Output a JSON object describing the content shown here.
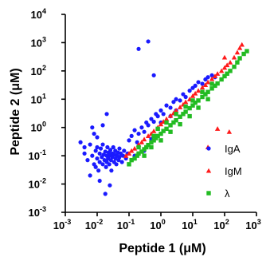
{
  "chart_data": {
    "type": "scatter",
    "xlabel": "Peptide 1 (μM)",
    "ylabel": "Peptide 2 (μM)",
    "log_x": true,
    "log_y": true,
    "xlim": [
      0.001,
      1000
    ],
    "ylim": [
      0.001,
      10000
    ],
    "x_ticks": [
      {
        "base": "10",
        "exp": "-3"
      },
      {
        "base": "10",
        "exp": "-2"
      },
      {
        "base": "10",
        "exp": "-1"
      },
      {
        "base": "10",
        "exp": "0"
      },
      {
        "base": "10",
        "exp": "1"
      },
      {
        "base": "10",
        "exp": "2"
      },
      {
        "base": "10",
        "exp": "3"
      }
    ],
    "y_ticks": [
      {
        "label": "10",
        "exp": "-3"
      },
      {
        "label": "10",
        "exp": "-2"
      },
      {
        "label": "10",
        "exp": "-1"
      },
      {
        "label": "10",
        "exp": "0",
        "full": "10⁰"
      },
      {
        "label": "10",
        "exp": "1"
      },
      {
        "label": "10",
        "exp": "2"
      },
      {
        "label": "10",
        "exp": "3"
      },
      {
        "label": "10",
        "exp": "4"
      }
    ],
    "y_tick_text": [
      "10-3",
      "10-2",
      "10-1",
      "100",
      "101",
      "102",
      "103",
      "104"
    ],
    "legend": {
      "placement": "bottom-right"
    },
    "series": [
      {
        "name": "IgA",
        "color": "#1a1aff",
        "marker": "circle",
        "points": [
          [
            0.003,
            0.3
          ],
          [
            0.004,
            0.2
          ],
          [
            0.004,
            0.12
          ],
          [
            0.005,
            0.07
          ],
          [
            0.006,
            0.25
          ],
          [
            0.007,
            0.1
          ],
          [
            0.008,
            0.05
          ],
          [
            0.009,
            0.15
          ],
          [
            0.009,
            0.04
          ],
          [
            0.01,
            0.2
          ],
          [
            0.01,
            0.08
          ],
          [
            0.011,
            0.03
          ],
          [
            0.012,
            0.12
          ],
          [
            0.012,
            0.06
          ],
          [
            0.013,
            0.18
          ],
          [
            0.014,
            0.09
          ],
          [
            0.015,
            0.05
          ],
          [
            0.015,
            0.25
          ],
          [
            0.016,
            0.11
          ],
          [
            0.017,
            0.07
          ],
          [
            0.018,
            0.14
          ],
          [
            0.019,
            0.04
          ],
          [
            0.02,
            0.1
          ],
          [
            0.02,
            0.06
          ],
          [
            0.021,
            0.2
          ],
          [
            0.022,
            0.08
          ],
          [
            0.023,
            0.13
          ],
          [
            0.024,
            0.05
          ],
          [
            0.025,
            0.1
          ],
          [
            0.026,
            0.16
          ],
          [
            0.027,
            0.07
          ],
          [
            0.028,
            0.03
          ],
          [
            0.03,
            0.12
          ],
          [
            0.03,
            0.09
          ],
          [
            0.032,
            0.2
          ],
          [
            0.034,
            0.06
          ],
          [
            0.035,
            0.11
          ],
          [
            0.037,
            0.15
          ],
          [
            0.038,
            0.08
          ],
          [
            0.04,
            0.05
          ],
          [
            0.042,
            0.1
          ],
          [
            0.045,
            0.13
          ],
          [
            0.047,
            0.07
          ],
          [
            0.05,
            0.18
          ],
          [
            0.05,
            0.09
          ],
          [
            0.055,
            0.12
          ],
          [
            0.06,
            0.06
          ],
          [
            0.065,
            0.1
          ],
          [
            0.07,
            0.15
          ],
          [
            0.08,
            0.08
          ],
          [
            0.09,
            0.12
          ],
          [
            0.01,
            0.45
          ],
          [
            0.008,
            0.6
          ],
          [
            0.007,
            1.0
          ],
          [
            0.012,
            0.013
          ],
          [
            0.018,
            0.0045
          ],
          [
            0.025,
            0.009
          ],
          [
            0.006,
            0.02
          ],
          [
            0.02,
            3.0
          ],
          [
            0.015,
            1.2
          ],
          [
            0.1,
            0.35
          ],
          [
            0.12,
            0.5
          ],
          [
            0.15,
            0.8
          ],
          [
            0.18,
            0.3
          ],
          [
            0.2,
            0.6
          ],
          [
            0.25,
            1.0
          ],
          [
            0.3,
            0.7
          ],
          [
            0.35,
            1.5
          ],
          [
            0.4,
            1.2
          ],
          [
            0.5,
            2.0
          ],
          [
            0.6,
            1.6
          ],
          [
            0.7,
            3.0
          ],
          [
            0.8,
            2.5
          ],
          [
            1.0,
            4.0
          ],
          [
            1.2,
            3.0
          ],
          [
            1.5,
            6.0
          ],
          [
            2.0,
            5.0
          ],
          [
            2.5,
            8.0
          ],
          [
            3.0,
            10.0
          ],
          [
            4.0,
            9.0
          ],
          [
            5.0,
            15.0
          ],
          [
            6.0,
            12.0
          ],
          [
            8.0,
            20.0
          ],
          [
            10.0,
            25.0
          ],
          [
            12.0,
            30.0
          ],
          [
            15.0,
            40.0
          ],
          [
            20.0,
            35.0
          ],
          [
            25.0,
            50.0
          ],
          [
            30.0,
            60.0
          ],
          [
            40.0,
            70.0
          ],
          [
            50.0,
            60.0
          ],
          [
            0.2,
            600
          ],
          [
            0.4,
            1100
          ],
          [
            0.6,
            70
          ],
          [
            0.3,
            0.15
          ],
          [
            0.15,
            0.1
          ],
          [
            0.5,
            0.4
          ],
          [
            1.0,
            1.5
          ],
          [
            2.0,
            2.5
          ],
          [
            3.0,
            4.0
          ]
        ]
      },
      {
        "name": "IgM",
        "color": "#ff1a1a",
        "marker": "triangle",
        "points": [
          [
            0.08,
            0.1
          ],
          [
            0.1,
            0.12
          ],
          [
            0.12,
            0.15
          ],
          [
            0.15,
            0.18
          ],
          [
            0.2,
            0.25
          ],
          [
            0.25,
            0.3
          ],
          [
            0.3,
            0.38
          ],
          [
            0.4,
            0.5
          ],
          [
            0.5,
            0.6
          ],
          [
            0.6,
            0.75
          ],
          [
            0.8,
            1.0
          ],
          [
            1.0,
            1.3
          ],
          [
            1.2,
            1.6
          ],
          [
            1.5,
            2.0
          ],
          [
            2.0,
            2.6
          ],
          [
            2.5,
            3.2
          ],
          [
            3.0,
            4.0
          ],
          [
            4.0,
            5.2
          ],
          [
            5.0,
            6.5
          ],
          [
            6.0,
            8.0
          ],
          [
            8.0,
            10.0
          ],
          [
            10.0,
            13.0
          ],
          [
            12.0,
            16.0
          ],
          [
            15.0,
            20.0
          ],
          [
            20.0,
            26.0
          ],
          [
            25.0,
            32.0
          ],
          [
            30.0,
            40.0
          ],
          [
            40.0,
            52.0
          ],
          [
            50.0,
            65.0
          ],
          [
            60.0,
            80.0
          ],
          [
            80.0,
            100.0
          ],
          [
            100.0,
            130.0
          ],
          [
            120.0,
            160.0
          ],
          [
            150.0,
            200.0
          ],
          [
            200.0,
            300.0
          ],
          [
            250.0,
            450.0
          ],
          [
            300.0,
            650.0
          ],
          [
            350.0,
            850.0
          ],
          [
            140.0,
            0.7
          ],
          [
            30.0,
            0.2
          ],
          [
            60.0,
            0.9
          ],
          [
            100.0,
            300.0
          ]
        ]
      },
      {
        "name": "λ",
        "color": "#22bb22",
        "marker": "square",
        "points": [
          [
            0.1,
            0.05
          ],
          [
            0.12,
            0.07
          ],
          [
            0.15,
            0.08
          ],
          [
            0.18,
            0.1
          ],
          [
            0.2,
            0.12
          ],
          [
            0.25,
            0.14
          ],
          [
            0.3,
            0.17
          ],
          [
            0.35,
            0.2
          ],
          [
            0.4,
            0.24
          ],
          [
            0.5,
            0.3
          ],
          [
            0.6,
            0.35
          ],
          [
            0.7,
            0.42
          ],
          [
            0.8,
            0.5
          ],
          [
            1.0,
            0.6
          ],
          [
            1.2,
            0.75
          ],
          [
            1.5,
            0.9
          ],
          [
            2.0,
            1.2
          ],
          [
            2.5,
            1.5
          ],
          [
            3.0,
            1.8
          ],
          [
            4.0,
            2.4
          ],
          [
            5.0,
            3.0
          ],
          [
            6.0,
            3.6
          ],
          [
            8.0,
            4.8
          ],
          [
            10.0,
            6.0
          ],
          [
            12.0,
            7.5
          ],
          [
            15.0,
            9.0
          ],
          [
            20.0,
            12.0
          ],
          [
            25.0,
            15.0
          ],
          [
            30.0,
            18.0
          ],
          [
            40.0,
            24.0
          ],
          [
            50.0,
            30.0
          ],
          [
            60.0,
            36.0
          ],
          [
            80.0,
            50.0
          ],
          [
            100.0,
            65.0
          ],
          [
            120.0,
            80.0
          ],
          [
            150.0,
            100.0
          ],
          [
            200.0,
            140.0
          ],
          [
            250.0,
            200.0
          ],
          [
            300.0,
            280.0
          ],
          [
            400.0,
            400.0
          ],
          [
            500.0,
            500.0
          ],
          [
            0.3,
            0.1
          ],
          [
            0.5,
            0.2
          ],
          [
            1.0,
            0.35
          ],
          [
            2.0,
            0.7
          ],
          [
            4.0,
            1.3
          ],
          [
            8.0,
            2.5
          ],
          [
            15.0,
            5.0
          ],
          [
            30.0,
            10.0
          ],
          [
            0.2,
            0.2
          ],
          [
            0.8,
            0.9
          ],
          [
            3.0,
            3.0
          ],
          [
            10.0,
            9.0
          ],
          [
            40.0,
            35.0
          ],
          [
            0.6,
            0.5
          ],
          [
            1.5,
            1.5
          ],
          [
            6.0,
            5.5
          ],
          [
            20.0,
            18.0
          ]
        ]
      }
    ]
  }
}
